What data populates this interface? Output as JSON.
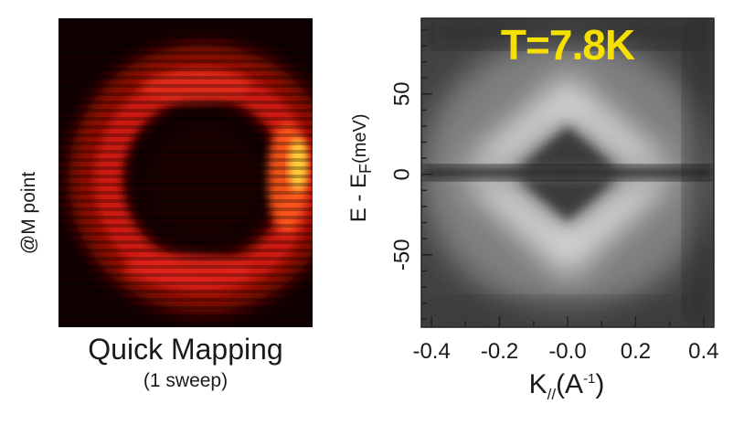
{
  "left_panel": {
    "side_label": "@M point",
    "caption": "Quick Mapping",
    "subcaption": "(1 sweep)",
    "colors": {
      "background": "#120000",
      "ring": "#e8201a",
      "hot": "#ffd23a"
    }
  },
  "chart_data": {
    "type": "heatmap",
    "annotation": "T=7.8K",
    "xlabel_main": "K",
    "xlabel_sub": "//",
    "xlabel_unit_open": "(A",
    "xlabel_unit_sup": "-1",
    "xlabel_unit_close": ")",
    "ylabel_main": "E - E",
    "ylabel_sub": "F",
    "ylabel_unit": "(meV)",
    "x_ticks": [
      {
        "value": -0.4,
        "label": "-0.4"
      },
      {
        "value": -0.2,
        "label": "-0.2"
      },
      {
        "value": 0.0,
        "label": "-0.0"
      },
      {
        "value": 0.2,
        "label": "0.2"
      },
      {
        "value": 0.4,
        "label": "0.4"
      }
    ],
    "y_ticks": [
      {
        "value": 50,
        "label": "50"
      },
      {
        "value": 0,
        "label": "0"
      },
      {
        "value": -50,
        "label": "-50"
      }
    ],
    "xlim": [
      -0.43,
      0.43
    ],
    "ylim": [
      -95,
      97
    ],
    "colormap": "grayscale",
    "annotation_color": "#f5e000"
  }
}
